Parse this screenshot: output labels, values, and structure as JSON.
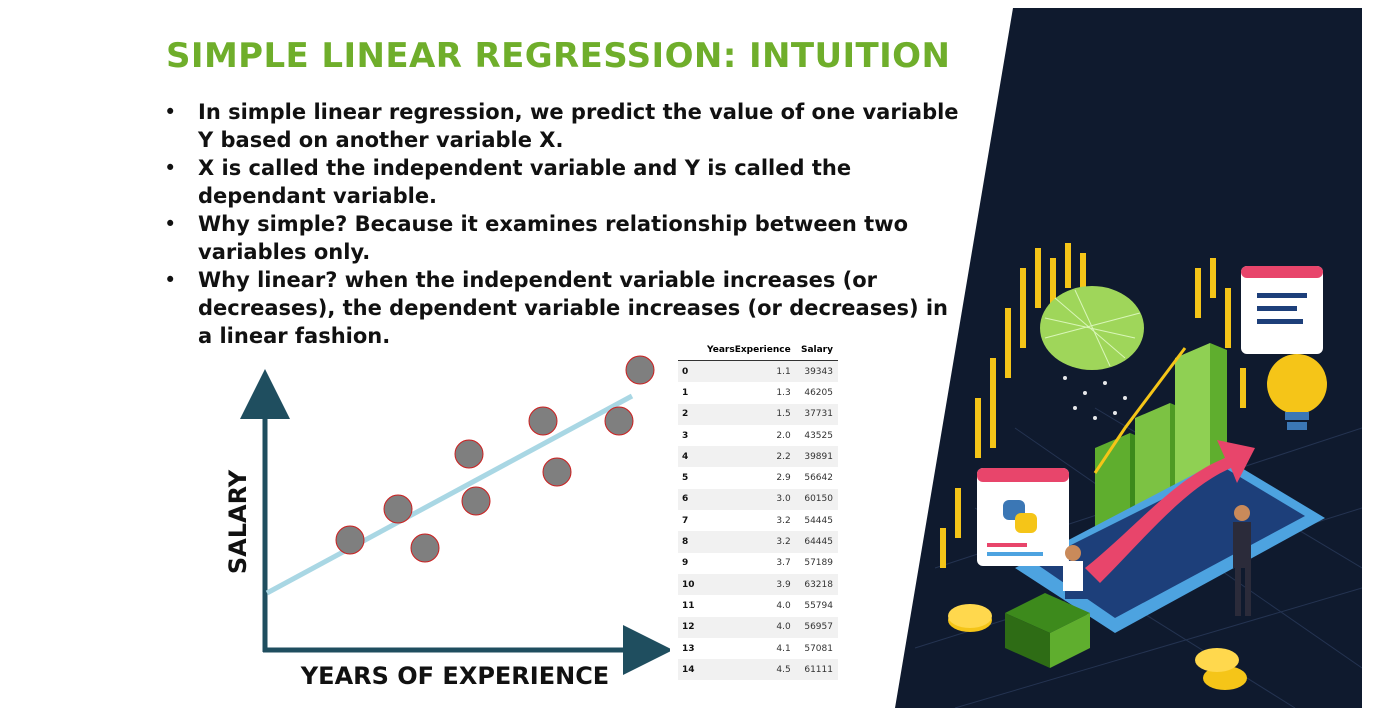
{
  "title": "SIMPLE LINEAR REGRESSION: INTUITION",
  "bullet_marker": "•",
  "bullets": [
    "In simple linear regression, we predict the value of one variable Y based on another variable X.",
    "X is called the independent variable and Y is called the dependant variable.",
    "Why simple? Because it examines relationship between two variables only.",
    "Why linear? when the independent variable increases (or decreases), the dependent variable increases (or decreases) in a linear fashion."
  ],
  "sketch": {
    "y_label": "SALARY",
    "x_label": "YEARS OF EXPERIENCE",
    "axis_color": "#1f4e5f",
    "line_color": "#a9d7e4",
    "point_fill": "#7f7f7f",
    "point_stroke": "#cc1f1f"
  },
  "table": {
    "headers": [
      "",
      "YearsExperience",
      "Salary"
    ],
    "rows": [
      [
        "0",
        "1.1",
        "39343"
      ],
      [
        "1",
        "1.3",
        "46205"
      ],
      [
        "2",
        "1.5",
        "37731"
      ],
      [
        "3",
        "2.0",
        "43525"
      ],
      [
        "4",
        "2.2",
        "39891"
      ],
      [
        "5",
        "2.9",
        "56642"
      ],
      [
        "6",
        "3.0",
        "60150"
      ],
      [
        "7",
        "3.2",
        "54445"
      ],
      [
        "8",
        "3.2",
        "64445"
      ],
      [
        "9",
        "3.7",
        "57189"
      ],
      [
        "10",
        "3.9",
        "63218"
      ],
      [
        "11",
        "4.0",
        "55794"
      ],
      [
        "12",
        "4.0",
        "56957"
      ],
      [
        "13",
        "4.1",
        "57081"
      ],
      [
        "14",
        "4.5",
        "61111"
      ]
    ]
  },
  "illustration": {
    "background": "#0f1a2e",
    "accent_green": "#7cc243",
    "accent_gold": "#f5c518",
    "accent_pink": "#e8456b",
    "accent_blue": "#4da3e0"
  }
}
